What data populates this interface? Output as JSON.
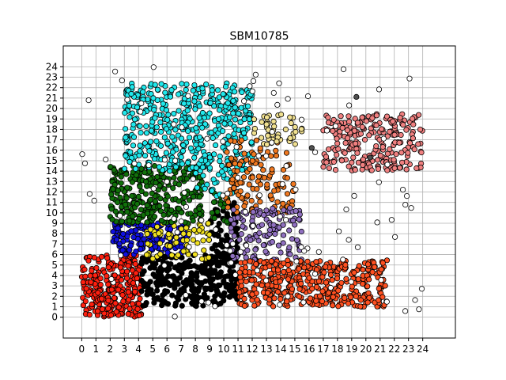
{
  "chart_data": {
    "type": "scatter",
    "title": "SBM10785",
    "xlabel": "",
    "ylabel": "",
    "xlim": [
      -1.3,
      26.3
    ],
    "ylim": [
      -2.0,
      26.0
    ],
    "x_ticks": [
      "0",
      "1",
      "2",
      "3",
      "4",
      "5",
      "6",
      "7",
      "8",
      "9",
      "10",
      "11",
      "12",
      "13",
      "14",
      "15",
      "16",
      "17",
      "18",
      "19",
      "20",
      "21",
      "22",
      "23",
      "24"
    ],
    "y_ticks": [
      "0",
      "1",
      "2",
      "3",
      "4",
      "5",
      "6",
      "7",
      "8",
      "9",
      "10",
      "11",
      "12",
      "13",
      "14",
      "15",
      "16",
      "17",
      "18",
      "19",
      "20",
      "21",
      "22",
      "23",
      "24"
    ],
    "grid": true,
    "marker_edge": "#000000",
    "clusters": [
      {
        "color": "#ff2010",
        "x": [
          0,
          4.2
        ],
        "y": [
          0,
          6
        ],
        "count": 260
      },
      {
        "color": "#000000",
        "x": [
          4.2,
          11
        ],
        "y": [
          1,
          6
        ],
        "count": 300
      },
      {
        "color": "#000000",
        "x": [
          9,
          11
        ],
        "y": [
          5,
          11
        ],
        "count": 80
      },
      {
        "color": "#1010e0",
        "x": [
          2.2,
          7.5
        ],
        "y": [
          6,
          9
        ],
        "count": 150
      },
      {
        "color": "#f0e020",
        "x": [
          4.5,
          9
        ],
        "y": [
          5.5,
          9
        ],
        "count": 70
      },
      {
        "color": "#10700a",
        "x": [
          2,
          8.5
        ],
        "y": [
          9,
          14.5
        ],
        "count": 300
      },
      {
        "color": "#10700a",
        "x": [
          9,
          10.3
        ],
        "y": [
          9,
          12
        ],
        "count": 20
      },
      {
        "color": "#20e8ec",
        "x": [
          3,
          12
        ],
        "y": [
          14,
          22.5
        ],
        "count": 460
      },
      {
        "color": "#20e8ec",
        "x": [
          8,
          11
        ],
        "y": [
          11.5,
          14.5
        ],
        "count": 30
      },
      {
        "color": "#f07820",
        "x": [
          10,
          15
        ],
        "y": [
          10,
          17
        ],
        "count": 130
      },
      {
        "color": "#9070c0",
        "x": [
          10.5,
          15.5
        ],
        "y": [
          5.5,
          10.5
        ],
        "count": 130
      },
      {
        "color": "#f0e090",
        "x": [
          12,
          15.5
        ],
        "y": [
          16.5,
          19.5
        ],
        "count": 45
      },
      {
        "color": "#ff5020",
        "x": [
          11,
          21.5
        ],
        "y": [
          1,
          5.5
        ],
        "count": 420
      },
      {
        "color": "#f08080",
        "x": [
          17,
          24
        ],
        "y": [
          14,
          19.5
        ],
        "count": 240
      },
      {
        "color": "#ffffff",
        "x": [
          0,
          24
        ],
        "y": [
          0,
          24
        ],
        "count": 120
      },
      {
        "color": "#505050",
        "x": [
          9,
          24.5
        ],
        "y": [
          14,
          25
        ],
        "count": 3
      }
    ]
  }
}
